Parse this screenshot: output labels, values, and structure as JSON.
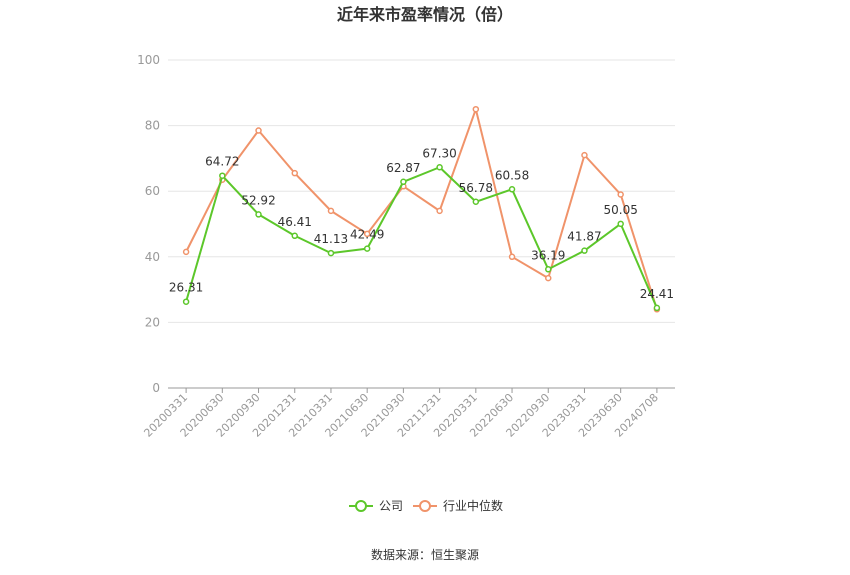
{
  "chart_data": {
    "type": "line",
    "title": "近年来市盈率情况（倍）",
    "x": [
      "20200331",
      "20200630",
      "20200930",
      "20201231",
      "20210331",
      "20210630",
      "20210930",
      "20211231",
      "20220331",
      "20220630",
      "20220930",
      "20230331",
      "20230630",
      "20240708"
    ],
    "ylim": [
      0,
      100
    ],
    "yticks": [
      0,
      20,
      40,
      60,
      80,
      100
    ],
    "grid": true,
    "legend_position": "bottom",
    "series": [
      {
        "name": "公司",
        "color": "#5cc72a",
        "values": [
          26.31,
          64.72,
          52.92,
          46.41,
          41.13,
          42.49,
          62.87,
          67.3,
          56.78,
          60.58,
          36.19,
          41.87,
          50.05,
          24.41
        ],
        "labels": [
          "26.31",
          "64.72",
          "52.92",
          "46.41",
          "41.13",
          "42.49",
          "62.87",
          "67.30",
          "56.78",
          "60.58",
          "36.19",
          "41.87",
          "50.05",
          "24.41"
        ]
      },
      {
        "name": "行业中位数",
        "color": "#f0936a",
        "values": [
          41.5,
          63.5,
          78.5,
          65.5,
          54.0,
          47.0,
          61.5,
          54.0,
          85.0,
          40.0,
          33.5,
          71.0,
          59.0,
          24.0
        ]
      }
    ],
    "source": "数据来源：恒生聚源"
  }
}
